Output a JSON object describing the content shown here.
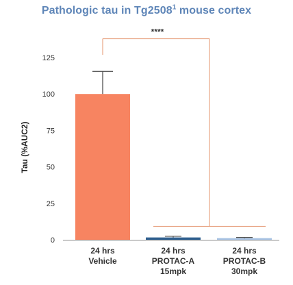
{
  "chart_data": {
    "type": "bar",
    "title": "Pathologic tau in Tg2508",
    "title_superscript": "1",
    "title_suffix": " mouse cortex",
    "ylabel": "Tau (%AUC2)",
    "xlabel": "",
    "ylim": [
      0,
      125
    ],
    "yticks": [
      0,
      25,
      50,
      75,
      100,
      125
    ],
    "grid": false,
    "categories": [
      [
        "24 hrs",
        "Vehicle"
      ],
      [
        "24 hrs",
        "PROTAC-A",
        "15mpk"
      ],
      [
        "24 hrs",
        "PROTAC-B",
        "30mpk"
      ]
    ],
    "values": [
      100,
      1.6,
      1.0
    ],
    "error_upper": [
      115.5,
      2.4,
      1.6
    ],
    "colors": [
      "#f78461",
      "#2f5f8f",
      "#a9c4e4"
    ],
    "significance": {
      "label": "****",
      "color": "#e8a686",
      "from_category": 0,
      "to_categories": [
        1,
        2
      ]
    }
  }
}
